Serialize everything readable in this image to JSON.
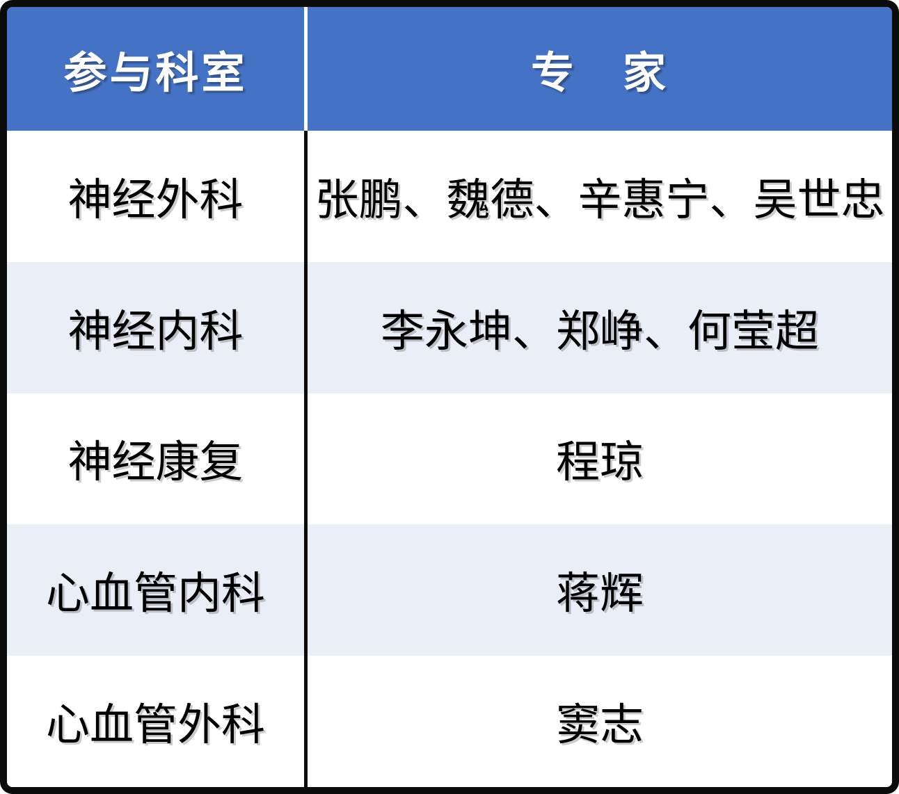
{
  "table": {
    "header": {
      "department": "参与科室",
      "expert": "专　家"
    },
    "rows": [
      {
        "department": "神经外科",
        "experts": "张鹏、魏德、辛惠宁、吴世忠"
      },
      {
        "department": "神经内科",
        "experts": "李永坤、郑峥、何莹超"
      },
      {
        "department": "神经康复",
        "experts": "程琼"
      },
      {
        "department": "心血管内科",
        "experts": "蒋辉"
      },
      {
        "department": "心血管外科",
        "experts": "窦志"
      }
    ],
    "colors": {
      "header_bg": "#4472C4",
      "header_text": "#FFFFFF",
      "row_bg": "#FFFFFF",
      "row_alt_bg": "#EAEEF7",
      "body_text": "#000000",
      "border": "#0B0B0B"
    }
  }
}
